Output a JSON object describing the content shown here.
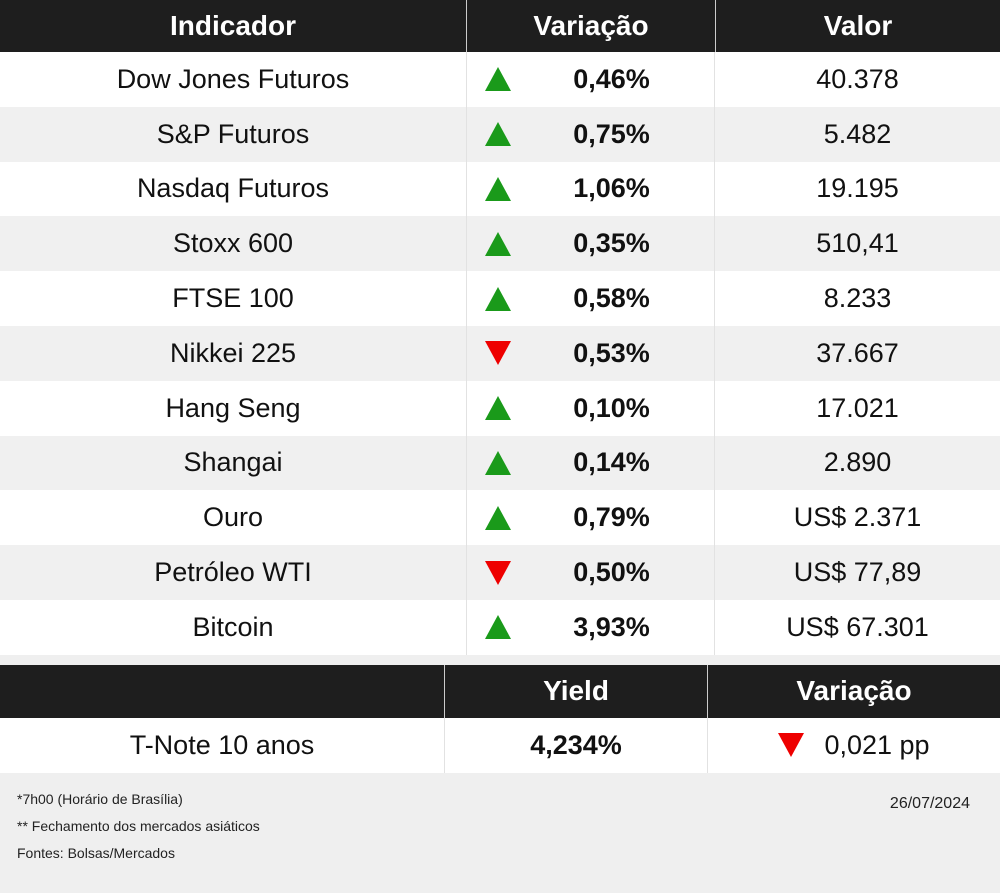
{
  "table": {
    "headers": [
      "Indicador",
      "Variação",
      "Valor"
    ],
    "rows": [
      {
        "name": "Dow Jones Futuros",
        "direction": "up",
        "change": "0,46%",
        "value": "40.378"
      },
      {
        "name": "S&P Futuros",
        "direction": "up",
        "change": "0,75%",
        "value": "5.482"
      },
      {
        "name": "Nasdaq Futuros",
        "direction": "up",
        "change": "1,06%",
        "value": "19.195"
      },
      {
        "name": "Stoxx 600",
        "direction": "up",
        "change": "0,35%",
        "value": "510,41"
      },
      {
        "name": "FTSE 100",
        "direction": "up",
        "change": "0,58%",
        "value": "8.233"
      },
      {
        "name": "Nikkei 225",
        "direction": "down",
        "change": "0,53%",
        "value": "37.667"
      },
      {
        "name": "Hang Seng",
        "direction": "up",
        "change": "0,10%",
        "value": "17.021"
      },
      {
        "name": "Shangai",
        "direction": "up",
        "change": "0,14%",
        "value": "2.890"
      },
      {
        "name": "Ouro",
        "direction": "up",
        "change": "0,79%",
        "value": "US$ 2.371"
      },
      {
        "name": "Petróleo WTI",
        "direction": "down",
        "change": "0,50%",
        "value": "US$ 77,89"
      },
      {
        "name": "Bitcoin",
        "direction": "up",
        "change": "3,93%",
        "value": "US$ 67.301"
      }
    ]
  },
  "bond": {
    "headers": [
      "",
      "Yield",
      "Variação"
    ],
    "name": "T-Note 10 anos",
    "yield": "4,234%",
    "direction": "down",
    "change": "0,021 pp"
  },
  "footer": {
    "notes": [
      "*7h00 (Horário de Brasília)",
      "** Fechamento dos mercados asiáticos",
      "Fontes: Bolsas/Mercados"
    ],
    "date": "26/07/2024"
  },
  "colors": {
    "up": "#1a9a1a",
    "down": "#e00000",
    "header_bg": "#1e1e1e"
  }
}
